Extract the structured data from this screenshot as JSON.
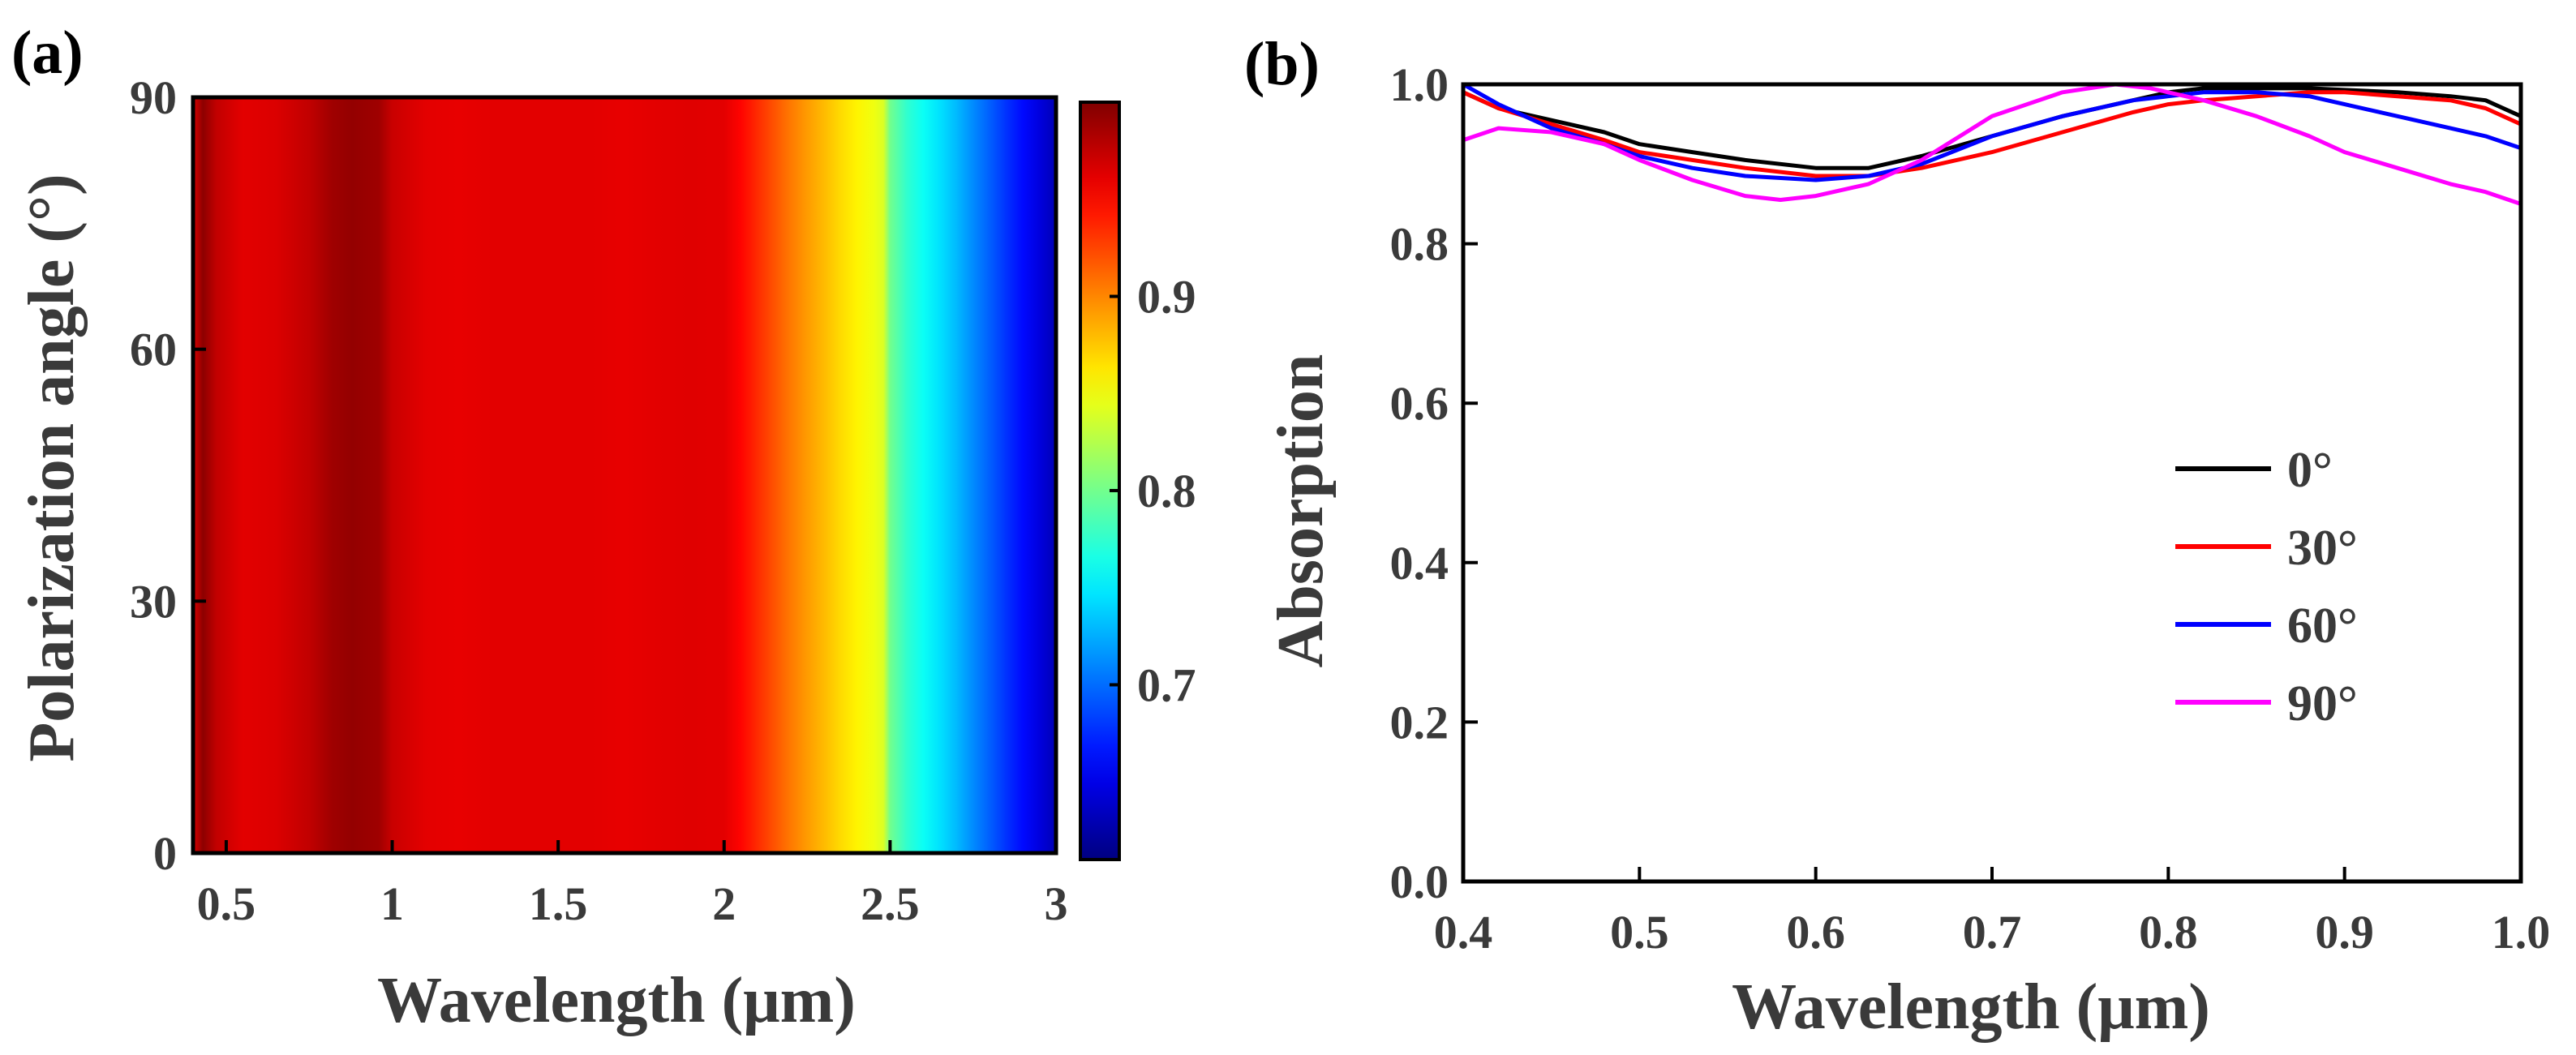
{
  "chart_data": [
    {
      "panel": "(a)",
      "type": "heatmap",
      "title": "",
      "xlabel": "Wavelength (μm)",
      "ylabel": "Polarization angle (°)",
      "xlim": [
        0.4,
        3.0
      ],
      "ylim": [
        0,
        90
      ],
      "xticks": [
        0.5,
        1,
        1.5,
        2,
        2.5,
        3
      ],
      "xtick_labels": [
        "0.5",
        "1",
        "1.5",
        "2",
        "2.5",
        "3"
      ],
      "yticks": [
        0,
        30,
        60,
        90
      ],
      "ytick_labels": [
        "0",
        "30",
        "60",
        "90"
      ],
      "colorbar": {
        "range": [
          0.61,
          1.0
        ],
        "ticks": [
          0.7,
          0.8,
          0.9
        ],
        "tick_labels": [
          "0.7",
          "0.8",
          "0.9"
        ],
        "colormap": "jet"
      },
      "note": "Absorption is independent of polarization angle; each column is uniform along the y axis.",
      "wavelength": [
        0.4,
        0.43,
        0.47,
        0.55,
        0.65,
        0.75,
        0.82,
        0.88,
        0.96,
        1.0,
        1.1,
        1.2,
        1.3,
        1.4,
        1.5,
        1.6,
        1.7,
        1.8,
        1.9,
        2.0,
        2.05,
        2.1,
        2.15,
        2.2,
        2.25,
        2.3,
        2.35,
        2.4,
        2.45,
        2.48,
        2.5,
        2.55,
        2.6,
        2.65,
        2.7,
        2.75,
        2.8,
        2.85,
        2.9,
        2.95,
        3.0
      ],
      "absorption": [
        0.965,
        0.995,
        0.975,
        0.962,
        0.965,
        0.975,
        0.988,
        0.992,
        0.988,
        0.972,
        0.962,
        0.96,
        0.962,
        0.962,
        0.962,
        0.962,
        0.96,
        0.962,
        0.963,
        0.962,
        0.95,
        0.935,
        0.92,
        0.905,
        0.892,
        0.88,
        0.868,
        0.858,
        0.848,
        0.84,
        0.8,
        0.775,
        0.76,
        0.745,
        0.73,
        0.712,
        0.695,
        0.678,
        0.662,
        0.646,
        0.63
      ]
    },
    {
      "panel": "(b)",
      "type": "line",
      "title": "",
      "xlabel": "Wavelength (μm)",
      "ylabel": "Absorption",
      "xlim": [
        0.4,
        1.0
      ],
      "ylim": [
        0.0,
        1.0
      ],
      "xticks": [
        0.4,
        0.5,
        0.6,
        0.7,
        0.8,
        0.9,
        1.0
      ],
      "xtick_labels": [
        "0.4",
        "0.5",
        "0.6",
        "0.7",
        "0.8",
        "0.9",
        "1.0"
      ],
      "yticks": [
        0.0,
        0.2,
        0.4,
        0.6,
        0.8,
        1.0
      ],
      "ytick_labels": [
        "0.0",
        "0.2",
        "0.4",
        "0.6",
        "0.8",
        "1.0"
      ],
      "legend_position": "center-right",
      "series": [
        {
          "name": "0°",
          "color": "#000000",
          "x": [
            0.4,
            0.42,
            0.45,
            0.48,
            0.5,
            0.53,
            0.56,
            0.6,
            0.63,
            0.66,
            0.7,
            0.74,
            0.78,
            0.8,
            0.82,
            0.85,
            0.88,
            0.9,
            0.93,
            0.96,
            0.98,
            1.0
          ],
          "y": [
            0.99,
            0.97,
            0.955,
            0.94,
            0.925,
            0.915,
            0.905,
            0.895,
            0.895,
            0.91,
            0.935,
            0.96,
            0.98,
            0.99,
            0.995,
            0.995,
            0.995,
            0.993,
            0.99,
            0.985,
            0.98,
            0.96
          ]
        },
        {
          "name": "30°",
          "color": "#ff0000",
          "x": [
            0.4,
            0.42,
            0.45,
            0.48,
            0.5,
            0.53,
            0.56,
            0.6,
            0.63,
            0.66,
            0.7,
            0.74,
            0.78,
            0.8,
            0.82,
            0.85,
            0.88,
            0.9,
            0.93,
            0.96,
            0.98,
            1.0
          ],
          "y": [
            0.99,
            0.97,
            0.95,
            0.93,
            0.915,
            0.905,
            0.895,
            0.885,
            0.885,
            0.895,
            0.915,
            0.94,
            0.965,
            0.975,
            0.98,
            0.985,
            0.99,
            0.99,
            0.985,
            0.98,
            0.97,
            0.95
          ]
        },
        {
          "name": "60°",
          "color": "#0000ff",
          "x": [
            0.4,
            0.42,
            0.45,
            0.48,
            0.5,
            0.53,
            0.56,
            0.6,
            0.63,
            0.66,
            0.7,
            0.74,
            0.78,
            0.8,
            0.82,
            0.85,
            0.88,
            0.9,
            0.93,
            0.96,
            0.98,
            1.0
          ],
          "y": [
            1.0,
            0.975,
            0.945,
            0.925,
            0.91,
            0.895,
            0.885,
            0.88,
            0.885,
            0.9,
            0.935,
            0.96,
            0.98,
            0.985,
            0.99,
            0.99,
            0.985,
            0.975,
            0.96,
            0.945,
            0.935,
            0.92
          ]
        },
        {
          "name": "90°",
          "color": "#ff00ff",
          "x": [
            0.4,
            0.42,
            0.45,
            0.48,
            0.5,
            0.53,
            0.56,
            0.58,
            0.6,
            0.63,
            0.66,
            0.7,
            0.74,
            0.77,
            0.79,
            0.82,
            0.85,
            0.88,
            0.9,
            0.93,
            0.96,
            0.98,
            1.0
          ],
          "y": [
            0.93,
            0.945,
            0.94,
            0.925,
            0.905,
            0.88,
            0.86,
            0.855,
            0.86,
            0.875,
            0.905,
            0.96,
            0.99,
            1.0,
            0.995,
            0.98,
            0.96,
            0.935,
            0.915,
            0.895,
            0.875,
            0.865,
            0.85
          ]
        }
      ]
    }
  ]
}
